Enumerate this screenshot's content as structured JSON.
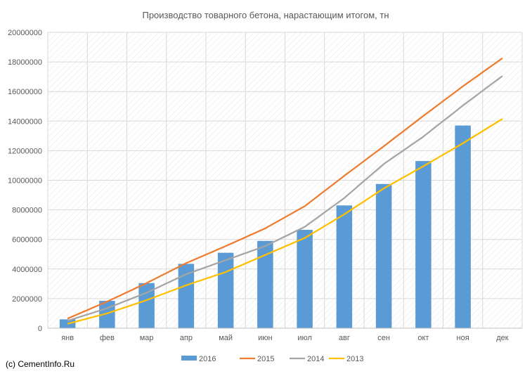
{
  "chart_data": {
    "type": "bar",
    "title": "Производство товарного бетона, нарастающим итогом, тн",
    "categories": [
      "янв",
      "фев",
      "мар",
      "апр",
      "май",
      "июн",
      "июл",
      "авг",
      "сен",
      "окт",
      "ноя",
      "дек"
    ],
    "ylim": [
      0,
      20000000
    ],
    "yticks": [
      "0",
      "2000000",
      "4000000",
      "6000000",
      "8000000",
      "10000000",
      "12000000",
      "14000000",
      "16000000",
      "18000000",
      "20000000"
    ],
    "grid": true,
    "legend_position": "bottom",
    "series": [
      {
        "name": "2016",
        "type": "bar",
        "color": "#5B9BD5",
        "values": [
          600000,
          1850000,
          3050000,
          4350000,
          5100000,
          5900000,
          6650000,
          8300000,
          9750000,
          11300000,
          13700000,
          null
        ]
      },
      {
        "name": "2015",
        "type": "line",
        "color": "#ED7D31",
        "values": [
          650000,
          1800000,
          3050000,
          4400000,
          5550000,
          6750000,
          8250000,
          10300000,
          12300000,
          14350000,
          16350000,
          18250000
        ]
      },
      {
        "name": "2014",
        "type": "line",
        "color": "#A5A5A5",
        "values": [
          500000,
          1350000,
          2400000,
          3650000,
          4600000,
          5550000,
          6850000,
          8800000,
          11100000,
          12950000,
          15050000,
          17050000
        ]
      },
      {
        "name": "2013",
        "type": "line",
        "color": "#FFC000",
        "values": [
          300000,
          1000000,
          1900000,
          2900000,
          3800000,
          4950000,
          6100000,
          7700000,
          9450000,
          10950000,
          12500000,
          14150000
        ]
      }
    ]
  },
  "footer": {
    "copyright": "(c) CementInfo.Ru"
  }
}
